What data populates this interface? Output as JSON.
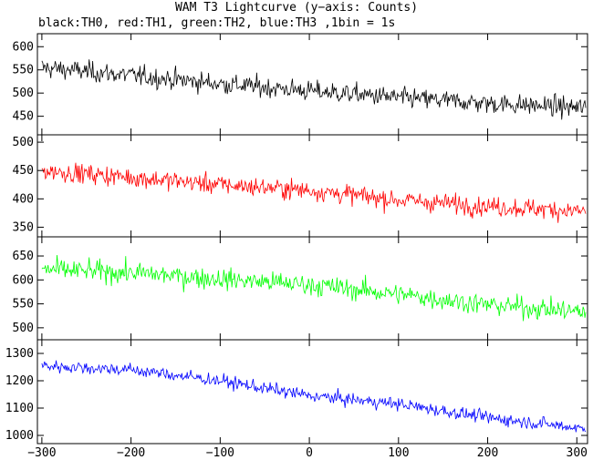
{
  "title": "WAM T3 Lightcurve (y−axis: Counts)",
  "subtitle": "black:TH0, red:TH1, green:TH2, blue:TH3 ,1bin = 1s",
  "chart_data": [
    {
      "type": "line",
      "series": [
        {
          "name": "TH0",
          "color": "#000000",
          "trend": [
            [
              -300,
              555
            ],
            [
              -200,
              538
            ],
            [
              -100,
              520
            ],
            [
              0,
              505
            ],
            [
              100,
              490
            ],
            [
              200,
              478
            ],
            [
              310,
              468
            ]
          ],
          "noise": 28
        }
      ],
      "xlim": [
        -305,
        312
      ],
      "ylim": [
        410,
        628
      ],
      "yticks": [
        450,
        500,
        550,
        600
      ]
    },
    {
      "type": "line",
      "series": [
        {
          "name": "TH1",
          "color": "#ff0000",
          "trend": [
            [
              -300,
              450
            ],
            [
              -200,
              438
            ],
            [
              -100,
              425
            ],
            [
              0,
              415
            ],
            [
              100,
              398
            ],
            [
              200,
              387
            ],
            [
              310,
              378
            ]
          ],
          "noise": 22
        }
      ],
      "xlim": [
        -305,
        312
      ],
      "ylim": [
        333,
        513
      ],
      "yticks": [
        350,
        400,
        450,
        500
      ]
    },
    {
      "type": "line",
      "series": [
        {
          "name": "TH2",
          "color": "#00ff00",
          "trend": [
            [
              -300,
              622
            ],
            [
              -200,
              615
            ],
            [
              -100,
              602
            ],
            [
              0,
              590
            ],
            [
              100,
              570
            ],
            [
              200,
              548
            ],
            [
              310,
              533
            ]
          ],
          "noise": 28
        }
      ],
      "xlim": [
        -305,
        312
      ],
      "ylim": [
        475,
        690
      ],
      "yticks": [
        500,
        550,
        600,
        650
      ]
    },
    {
      "type": "line",
      "series": [
        {
          "name": "TH3",
          "color": "#0000ff",
          "trend": [
            [
              -300,
              1255
            ],
            [
              -200,
              1240
            ],
            [
              -100,
              1200
            ],
            [
              0,
              1145
            ],
            [
              100,
              1115
            ],
            [
              200,
              1065
            ],
            [
              310,
              1025
            ]
          ],
          "noise": 30
        }
      ],
      "xlim": [
        -305,
        312
      ],
      "ylim": [
        970,
        1350
      ],
      "yticks": [
        1000,
        1100,
        1200,
        1300
      ]
    }
  ],
  "xaxis": {
    "ticks": [
      -300,
      -200,
      -100,
      0,
      100,
      200,
      300
    ],
    "tick_labels": [
      "−300",
      "−200",
      "−100",
      "0",
      "100",
      "200",
      "300"
    ]
  }
}
